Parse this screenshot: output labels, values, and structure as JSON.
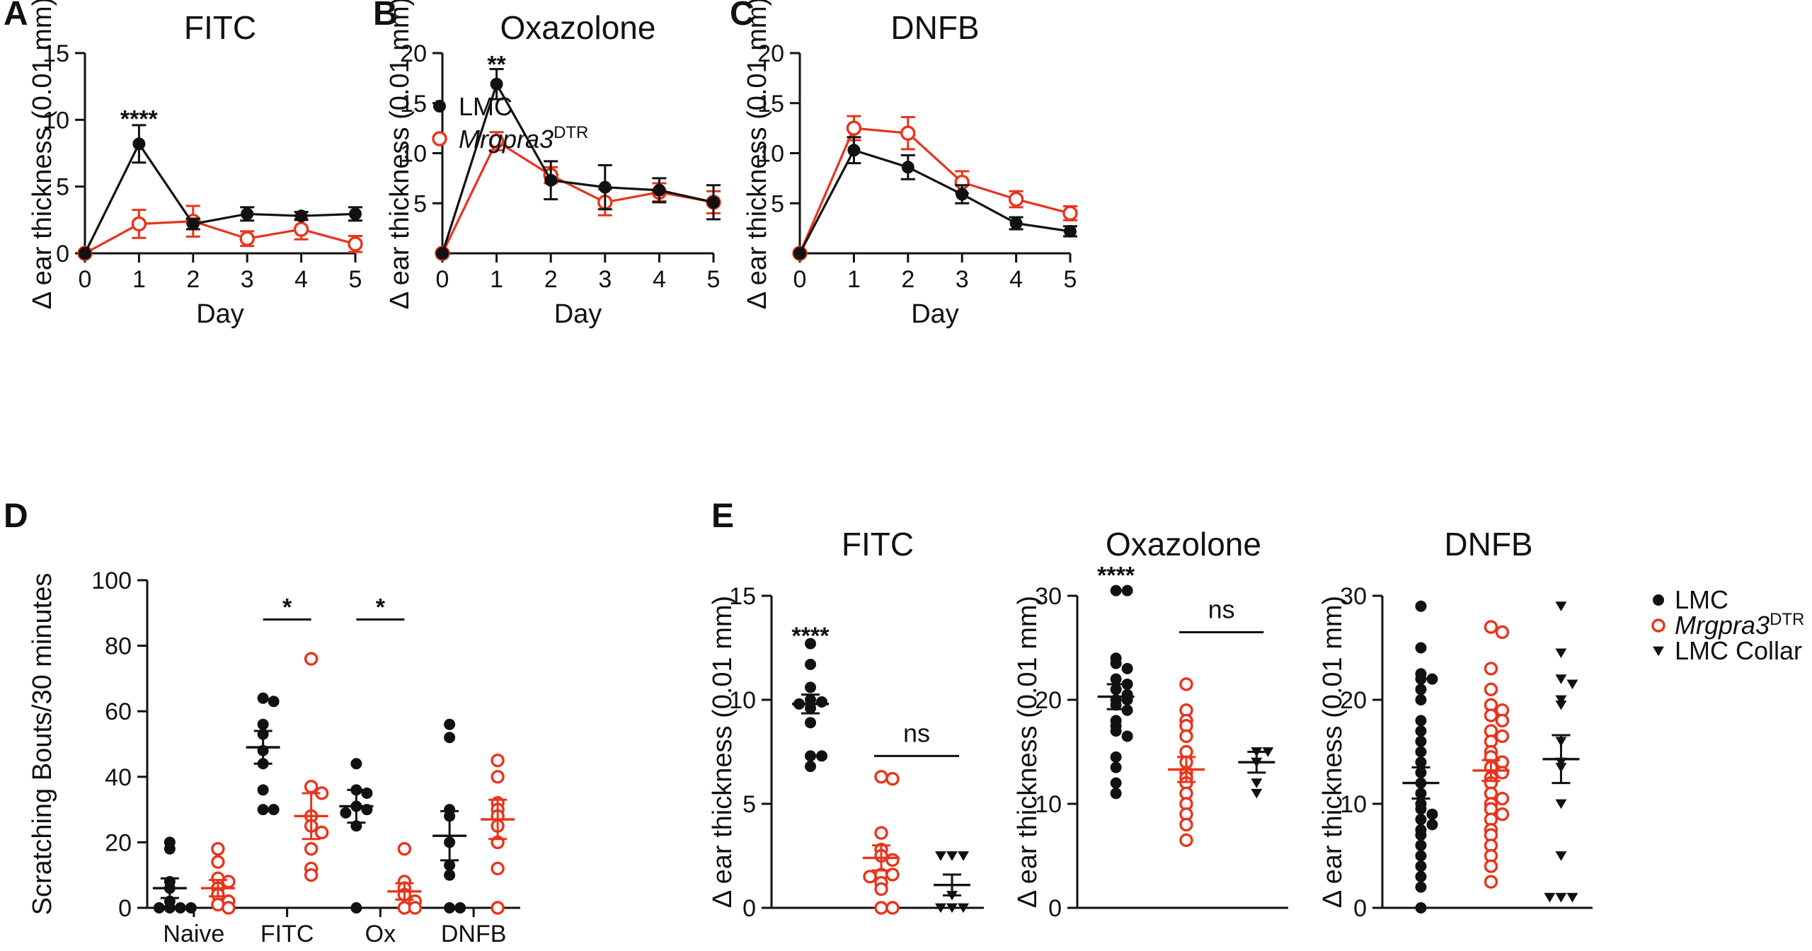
{
  "colors": {
    "lmc": "#111111",
    "dtr": "#e8341c",
    "collar": "#111111"
  },
  "legend_top": [
    {
      "label": "LMC",
      "series": "lmc",
      "marker": "filled-circle"
    },
    {
      "label": "Mrgpra3",
      "sup": "DTR",
      "series": "dtr",
      "marker": "open-circle"
    }
  ],
  "legend_e": [
    {
      "label": "LMC",
      "series": "lmc",
      "marker": "filled-circle"
    },
    {
      "label": "Mrgpra3",
      "sup": "DTR",
      "series": "dtr",
      "marker": "open-circle"
    },
    {
      "label": "LMC Collar",
      "series": "collar",
      "marker": "triangle"
    }
  ],
  "chart_data": [
    {
      "id": "A",
      "letter": "A",
      "type": "line",
      "title": "FITC",
      "xlabel": "Day",
      "ylabel": "Δ ear thickness (0.01 mm)",
      "x": [
        0,
        1,
        2,
        3,
        4,
        5
      ],
      "ylim": [
        0,
        15
      ],
      "yticks": [
        0,
        5,
        10,
        15
      ],
      "ytick_labels": [
        "0",
        "5",
        "10",
        "15"
      ],
      "series": [
        {
          "name": "LMC",
          "key": "lmc",
          "values": [
            0,
            8.2,
            2.2,
            2.95,
            2.8,
            2.95
          ],
          "err": [
            0,
            1.4,
            0.4,
            0.5,
            0.3,
            0.5
          ]
        },
        {
          "name": "Mrgpra3DTR",
          "key": "dtr",
          "values": [
            0,
            2.2,
            2.4,
            1.1,
            1.8,
            0.7
          ],
          "err": [
            0,
            1.05,
            1.15,
            0.55,
            0.75,
            0.6
          ]
        }
      ],
      "annotations": [
        {
          "text": "****",
          "x": 1,
          "y": 10.1
        }
      ],
      "legend": true
    },
    {
      "id": "B",
      "letter": "B",
      "type": "line",
      "title": "Oxazolone",
      "xlabel": "Day",
      "ylabel": "Δ ear thickness (0.01 mm)",
      "x": [
        0,
        1,
        2,
        3,
        4,
        5
      ],
      "ylim": [
        0,
        20
      ],
      "yticks": [
        5,
        10,
        15,
        20
      ],
      "ytick_labels": [
        "5",
        "10",
        "15",
        "20"
      ],
      "series": [
        {
          "name": "LMC",
          "key": "lmc",
          "values": [
            0,
            16.9,
            7.3,
            6.6,
            6.3,
            5.1
          ],
          "err": [
            0,
            1.5,
            1.9,
            2.2,
            1.2,
            1.7
          ]
        },
        {
          "name": "Mrgpra3DTR",
          "key": "dtr",
          "values": [
            0,
            11.2,
            7.8,
            5.1,
            6.1,
            5.1
          ],
          "err": [
            0,
            0.9,
            0.8,
            1.3,
            0.9,
            1.1
          ]
        }
      ],
      "annotations": [
        {
          "text": "**",
          "x": 1,
          "y": 18.9
        }
      ],
      "legend": false
    },
    {
      "id": "C",
      "letter": "C",
      "type": "line",
      "title": "DNFB",
      "xlabel": "Day",
      "ylabel": "Δ ear thickness (0.01 mm)",
      "x": [
        0,
        1,
        2,
        3,
        4,
        5
      ],
      "ylim": [
        0,
        20
      ],
      "yticks": [
        5,
        10,
        15,
        20
      ],
      "ytick_labels": [
        "5",
        "10",
        "15",
        "20"
      ],
      "series": [
        {
          "name": "LMC",
          "key": "lmc",
          "values": [
            0,
            10.3,
            8.6,
            5.9,
            3.0,
            2.2
          ],
          "err": [
            0,
            1.3,
            1.2,
            0.9,
            0.6,
            0.5
          ]
        },
        {
          "name": "Mrgpra3DTR",
          "key": "dtr",
          "values": [
            0,
            12.5,
            12.0,
            7.1,
            5.4,
            4.0
          ],
          "err": [
            0,
            1.2,
            1.6,
            1.1,
            0.8,
            0.7
          ]
        }
      ],
      "annotations": [],
      "legend": false
    },
    {
      "id": "D",
      "letter": "D",
      "type": "scatter",
      "title": "",
      "xlabel": "",
      "ylabel": "Scratching Bouts/30 minutes",
      "categories": [
        "Naive",
        "FITC",
        "Ox",
        "DNFB"
      ],
      "ylim": [
        0,
        100
      ],
      "yticks": [
        0,
        20,
        40,
        60,
        80,
        100
      ],
      "ytick_labels": [
        "0",
        "20",
        "40",
        "60",
        "80",
        "100"
      ],
      "groups": [
        {
          "category": "Naive",
          "key": "lmc",
          "mean": 6,
          "sem": 3,
          "points": [
            20,
            18,
            8,
            6,
            2,
            0,
            0,
            0,
            0
          ]
        },
        {
          "category": "Naive",
          "key": "dtr",
          "mean": 6,
          "sem": 2.5,
          "points": [
            18,
            14,
            9,
            8,
            6,
            4,
            2,
            1,
            0
          ]
        },
        {
          "category": "FITC",
          "key": "lmc",
          "mean": 49,
          "sem": 5,
          "points": [
            64,
            63,
            56,
            53,
            48,
            44,
            36,
            30,
            30
          ]
        },
        {
          "category": "FITC",
          "key": "dtr",
          "mean": 28,
          "sem": 7,
          "points": [
            76,
            37,
            35,
            28,
            25,
            23,
            18,
            12,
            10
          ]
        },
        {
          "category": "Ox",
          "key": "lmc",
          "mean": 31,
          "sem": 5,
          "points": [
            44,
            36,
            35,
            31,
            30,
            29,
            25,
            0
          ]
        },
        {
          "category": "Ox",
          "key": "dtr",
          "mean": 5,
          "sem": 2.5,
          "points": [
            18,
            8,
            6,
            4,
            2,
            0,
            0
          ]
        },
        {
          "category": "DNFB",
          "key": "lmc",
          "mean": 22,
          "sem": 7.5,
          "points": [
            56,
            52,
            30,
            28,
            20,
            13,
            10,
            0,
            0
          ]
        },
        {
          "category": "DNFB",
          "key": "dtr",
          "mean": 27,
          "sem": 6,
          "points": [
            45,
            40,
            32,
            30,
            28,
            25,
            20,
            12,
            0
          ]
        }
      ],
      "significance": [
        {
          "text": "*",
          "category": "FITC",
          "y": 88
        },
        {
          "text": "*",
          "category": "Ox",
          "y": 88
        }
      ]
    },
    {
      "id": "E1",
      "letter": "E",
      "type": "scatter",
      "title": "FITC",
      "xlabel": "",
      "ylabel": "Δ ear thickness (0.01 mm)",
      "ylim": [
        0,
        15
      ],
      "yticks": [
        0,
        5,
        10,
        15
      ],
      "ytick_labels": [
        "0",
        "5",
        "10",
        "15"
      ],
      "groups": [
        {
          "key": "lmc",
          "mean": 9.8,
          "sem": 0.45,
          "points": [
            12.7,
            11.7,
            10.6,
            10.0,
            9.9,
            9.8,
            9.6,
            8.9,
            7.3,
            7.3,
            6.8
          ]
        },
        {
          "key": "dtr",
          "mean": 2.4,
          "sem": 0.6,
          "points": [
            6.3,
            6.2,
            3.6,
            2.8,
            2.5,
            2.3,
            1.6,
            1.6,
            1.5,
            1.2,
            0.9,
            0,
            0
          ]
        },
        {
          "key": "collar",
          "mean": 1.1,
          "sem": 0.5,
          "points": [
            2.5,
            2.5,
            2.5,
            0.6,
            0,
            0,
            0
          ]
        }
      ],
      "significance": [
        {
          "text": "****",
          "group": 0,
          "y": 13.1
        },
        {
          "text": "ns",
          "groups": [
            1,
            2
          ],
          "y": 7.3
        }
      ]
    },
    {
      "id": "E2",
      "letter": "",
      "type": "scatter",
      "title": "Oxazolone",
      "xlabel": "",
      "ylabel": "Δ ear thickness (0.01 mm)",
      "ylim": [
        0,
        30
      ],
      "yticks": [
        0,
        10,
        20,
        30
      ],
      "ytick_labels": [
        "0",
        "10",
        "20",
        "30"
      ],
      "groups": [
        {
          "key": "lmc",
          "mean": 20.3,
          "sem": 1.2,
          "points": [
            30.5,
            30.5,
            24,
            23.5,
            23,
            22,
            21.5,
            21,
            20.5,
            20,
            20,
            19.5,
            19,
            18,
            17.5,
            17,
            16.5,
            14.5,
            13.5,
            12,
            11
          ]
        },
        {
          "key": "dtr",
          "mean": 13.3,
          "sem": 1.2,
          "points": [
            21.5,
            19,
            18,
            17.5,
            16.5,
            15,
            14,
            13,
            12.5,
            12,
            11,
            10,
            9,
            8,
            6.5
          ]
        },
        {
          "key": "collar",
          "mean": 14,
          "sem": 1,
          "points": [
            15,
            15,
            14,
            12,
            11
          ]
        }
      ],
      "significance": [
        {
          "text": "****",
          "group": 0,
          "y": 32
        },
        {
          "text": "ns",
          "groups": [
            1,
            2
          ],
          "y": 26.5
        }
      ]
    },
    {
      "id": "E3",
      "letter": "",
      "type": "scatter",
      "title": "DNFB",
      "xlabel": "",
      "ylabel": "Δ ear thickness (0.01 mm)",
      "ylim": [
        0,
        30
      ],
      "yticks": [
        0,
        10,
        20,
        30
      ],
      "ytick_labels": [
        "0",
        "10",
        "20",
        "30"
      ],
      "groups": [
        {
          "key": "lmc",
          "mean": 12,
          "sem": 1.5,
          "points": [
            29,
            25,
            22.5,
            22,
            22,
            21,
            20,
            18,
            17,
            16,
            15,
            14,
            13,
            12,
            11,
            10,
            9.5,
            9,
            8.5,
            8,
            7.5,
            7,
            6,
            5,
            4,
            3,
            2,
            0
          ]
        },
        {
          "key": "dtr",
          "mean": 13.2,
          "sem": 1,
          "points": [
            27,
            26.5,
            23,
            21,
            19.5,
            19,
            18.5,
            18,
            17,
            16.5,
            16,
            15,
            14.5,
            14,
            13.5,
            13,
            12.5,
            12,
            11,
            10.5,
            10,
            9.5,
            9,
            8.5,
            7.5,
            7,
            6,
            5,
            4,
            2.5
          ]
        },
        {
          "key": "collar",
          "mean": 14.3,
          "sem": 2.3,
          "points": [
            29,
            24.5,
            22,
            21.5,
            20,
            19.5,
            16,
            14,
            13.5,
            10,
            5,
            1,
            1,
            1
          ]
        }
      ],
      "significance": []
    }
  ]
}
